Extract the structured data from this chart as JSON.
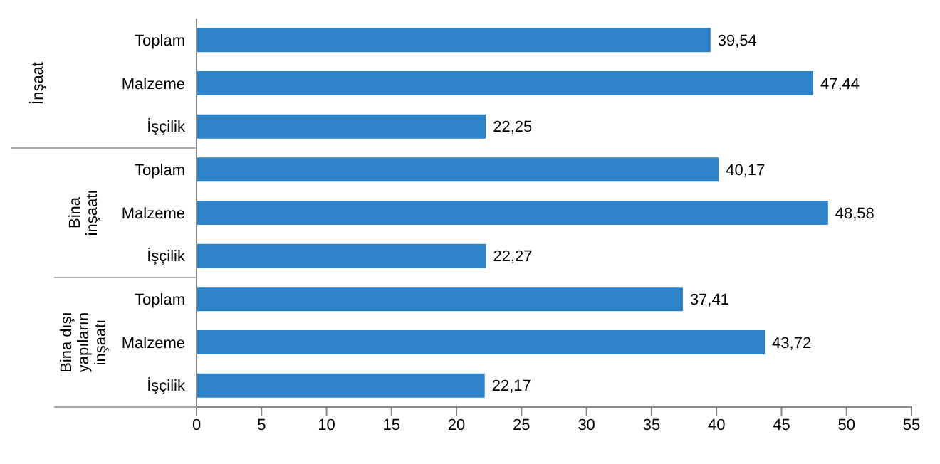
{
  "chart_data": {
    "type": "bar",
    "orientation": "horizontal",
    "categories": [
      "Toplam",
      "Malzeme",
      "İşçilik",
      "Toplam",
      "Malzeme",
      "İşçilik",
      "Toplam",
      "Malzeme",
      "İşçilik"
    ],
    "values": [
      39.54,
      47.44,
      22.25,
      40.17,
      48.58,
      22.27,
      37.41,
      43.72,
      22.17
    ],
    "color": "#2e83c8",
    "value_labels": [
      "39,54",
      "47,44",
      "22,25",
      "40,17",
      "48,58",
      "22,27",
      "37,41",
      "43,72",
      "22,17"
    ],
    "xlim": [
      0,
      55
    ],
    "xticks": [
      0,
      5,
      10,
      15,
      20,
      25,
      30,
      35,
      40,
      45,
      50,
      55
    ],
    "grid": false,
    "legend": false,
    "annotations": [
      "İnşaat",
      "Bina inşaatı",
      "Bina dışı yapıların inşaatı"
    ]
  }
}
